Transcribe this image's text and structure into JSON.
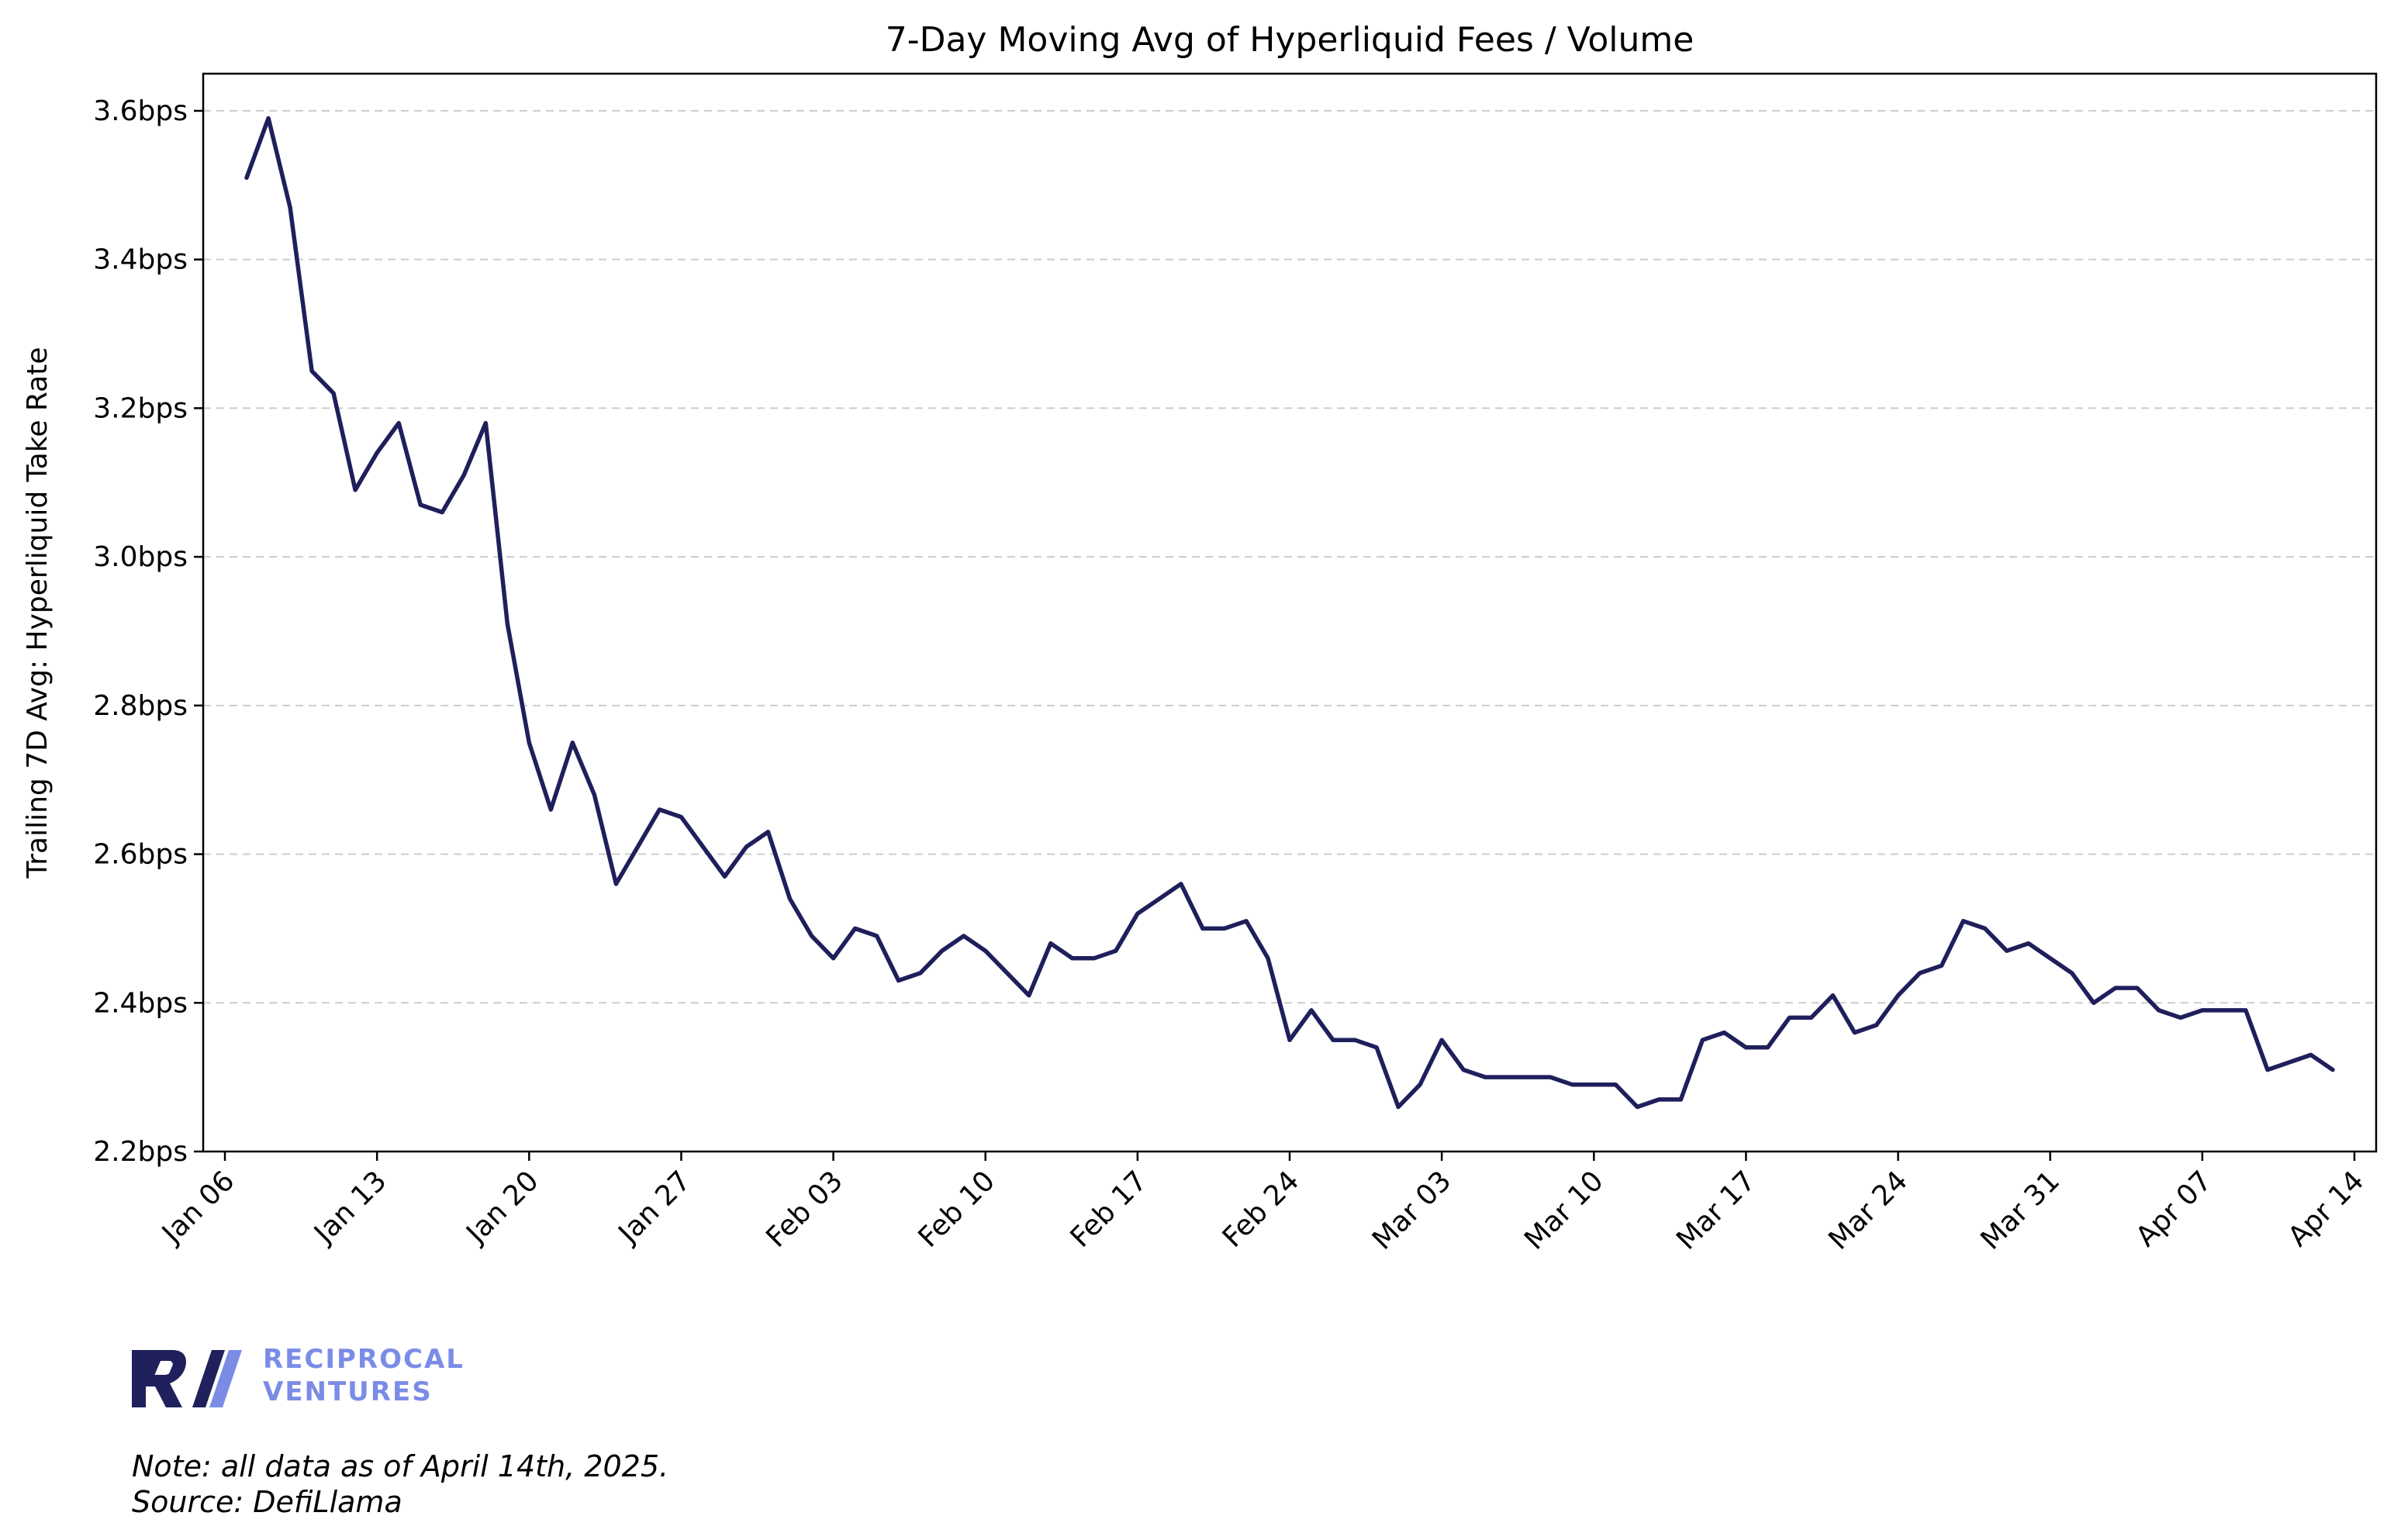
{
  "chart_data": {
    "type": "line",
    "title": "7-Day Moving Avg of Hyperliquid Fees / Volume",
    "xlabel": "",
    "ylabel": "Trailing 7D Avg: Hyperliquid Take Rate",
    "y_unit_suffix": "bps",
    "ylim": [
      2.2,
      3.65
    ],
    "y_ticks": [
      2.2,
      2.4,
      2.6,
      2.8,
      3.0,
      3.2,
      3.4,
      3.6
    ],
    "y_tick_labels": [
      "2.2bps",
      "2.4bps",
      "2.6bps",
      "2.8bps",
      "3.0bps",
      "3.2bps",
      "3.4bps",
      "3.6bps"
    ],
    "xlim": [
      "2025-01-05",
      "2025-04-15"
    ],
    "x_ticks": [
      "2025-01-06",
      "2025-01-13",
      "2025-01-20",
      "2025-01-27",
      "2025-02-03",
      "2025-02-10",
      "2025-02-17",
      "2025-02-24",
      "2025-03-03",
      "2025-03-10",
      "2025-03-17",
      "2025-03-24",
      "2025-03-31",
      "2025-04-07",
      "2025-04-14"
    ],
    "x_tick_labels": [
      "Jan 06",
      "Jan 13",
      "Jan 20",
      "Jan 27",
      "Feb 03",
      "Feb 10",
      "Feb 17",
      "Feb 24",
      "Mar 03",
      "Mar 10",
      "Mar 17",
      "Mar 24",
      "Mar 31",
      "Apr 07",
      "Apr 14"
    ],
    "grid": "horizontal dashed",
    "line_color": "#1f1f5c",
    "series": [
      {
        "name": "",
        "x_start": "2025-01-07",
        "x_step_days": 1,
        "values": [
          3.51,
          3.59,
          3.47,
          3.25,
          3.22,
          3.09,
          3.14,
          3.18,
          3.07,
          3.06,
          3.11,
          3.18,
          2.91,
          2.75,
          2.66,
          2.75,
          2.68,
          2.56,
          2.61,
          2.66,
          2.65,
          2.61,
          2.57,
          2.61,
          2.63,
          2.54,
          2.49,
          2.46,
          2.5,
          2.49,
          2.43,
          2.44,
          2.47,
          2.49,
          2.47,
          2.44,
          2.41,
          2.48,
          2.46,
          2.46,
          2.47,
          2.52,
          2.54,
          2.56,
          2.5,
          2.5,
          2.51,
          2.46,
          2.35,
          2.39,
          2.35,
          2.35,
          2.34,
          2.26,
          2.29,
          2.35,
          2.31,
          2.3,
          2.3,
          2.3,
          2.3,
          2.29,
          2.29,
          2.29,
          2.26,
          2.27,
          2.27,
          2.35,
          2.36,
          2.34,
          2.34,
          2.38,
          2.38,
          2.41,
          2.36,
          2.37,
          2.41,
          2.44,
          2.45,
          2.51,
          2.5,
          2.47,
          2.48,
          2.46,
          2.44,
          2.4,
          2.42,
          2.42,
          2.39,
          2.38,
          2.39,
          2.39,
          2.39,
          2.31,
          2.32,
          2.33,
          2.31
        ]
      }
    ]
  },
  "brand": {
    "logo_mark": "R//",
    "name_line1": "RECIPROCAL",
    "name_line2": "VENTURES",
    "mark_color": "#20205c",
    "slash_color": "#7b8ce6",
    "text_color": "#7b8ce6"
  },
  "notes": {
    "line1": "Note: all data as of April 14th, 2025.",
    "line2": "Source: DefiLlama"
  }
}
